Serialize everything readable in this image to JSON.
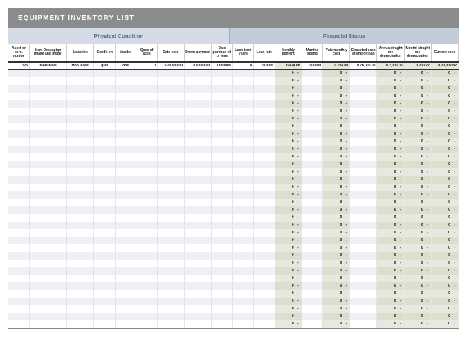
{
  "title": "EQUIPMENT INVENTORY LIST",
  "sections": {
    "physical": "Physical Condition",
    "financial": "Financial Status"
  },
  "columns": [
    {
      "key": "asset_no",
      "label": "Asset or serc. numbe",
      "w": "col-w-sm"
    },
    {
      "key": "item_desc",
      "label": "Item Descagtqn [make and mode]",
      "w": "col-w-lg"
    },
    {
      "key": "location",
      "label": "Location",
      "w": "col-w-md"
    },
    {
      "key": "condit",
      "label": "Condit on",
      "w": "col-w-sm"
    },
    {
      "key": "vendor",
      "label": "Vendor",
      "w": "col-w-sm"
    },
    {
      "key": "qoss",
      "label": "Qoss of sces",
      "w": "col-w-sm"
    },
    {
      "key": "date_sces",
      "label": "Date sces",
      "w": "col-w-md"
    },
    {
      "key": "down_payment",
      "label": "Down payment",
      "w": "col-w-md"
    },
    {
      "key": "date_pur",
      "label": "Date purchas ed or leas",
      "w": "col-w-sm"
    },
    {
      "key": "loan_term",
      "label": "Loan term years",
      "w": "col-w-sm"
    },
    {
      "key": "loan_rate",
      "label": "Loan rate",
      "w": "col-w-sm"
    },
    {
      "key": "monthly_payment",
      "label": "Monthly pqment",
      "w": "col-w-md"
    },
    {
      "key": "months_spend",
      "label": "Months spend",
      "w": "col-w-sm"
    },
    {
      "key": "yate_monthly",
      "label": "Yate monthly cost",
      "w": "col-w-md"
    },
    {
      "key": "expected",
      "label": "Expected sces at end of loan",
      "w": "col-w-md"
    },
    {
      "key": "annual_sl",
      "label": "Annua straght me deprecoation",
      "w": "col-w-md"
    },
    {
      "key": "monthly_sl",
      "label": "Monthl straght me deprecoation",
      "w": "col-w-md"
    },
    {
      "key": "current",
      "label": "Current sces",
      "w": "col-w-md"
    }
  ],
  "dataRow": {
    "asset_no": "123",
    "item_desc": "Mole Mole",
    "location": "Moo lacest",
    "condit": "gscl",
    "vendor": "oos",
    "qoss": "0",
    "date_sces": "0 20,000.00",
    "down_payment": "0 0,000.00",
    "date_pur": "0000000",
    "loan_term": "4",
    "loan_rate": "10.00%",
    "monthly_payment": "0 424.0b",
    "months_spend": "000000",
    "yate_monthly": "0 024.0b",
    "expected": "0 20,000.00",
    "annual_sl": "0 2,000.00",
    "monthly_sl": "0  200.22",
    "current": "0  20,002.b2"
  },
  "calcCols": [
    "monthly_payment",
    "yate_monthly",
    "annual_sl",
    "monthly_sl",
    "current"
  ],
  "emptyDash": "0    -",
  "emptyRows": 34,
  "colors": {
    "titleBg": "#8a8c8e",
    "physBg": "#d5dbe6",
    "finBg": "#c2cbda",
    "altRow": "#eef0f5",
    "calcBg": "#e8e8e0"
  }
}
